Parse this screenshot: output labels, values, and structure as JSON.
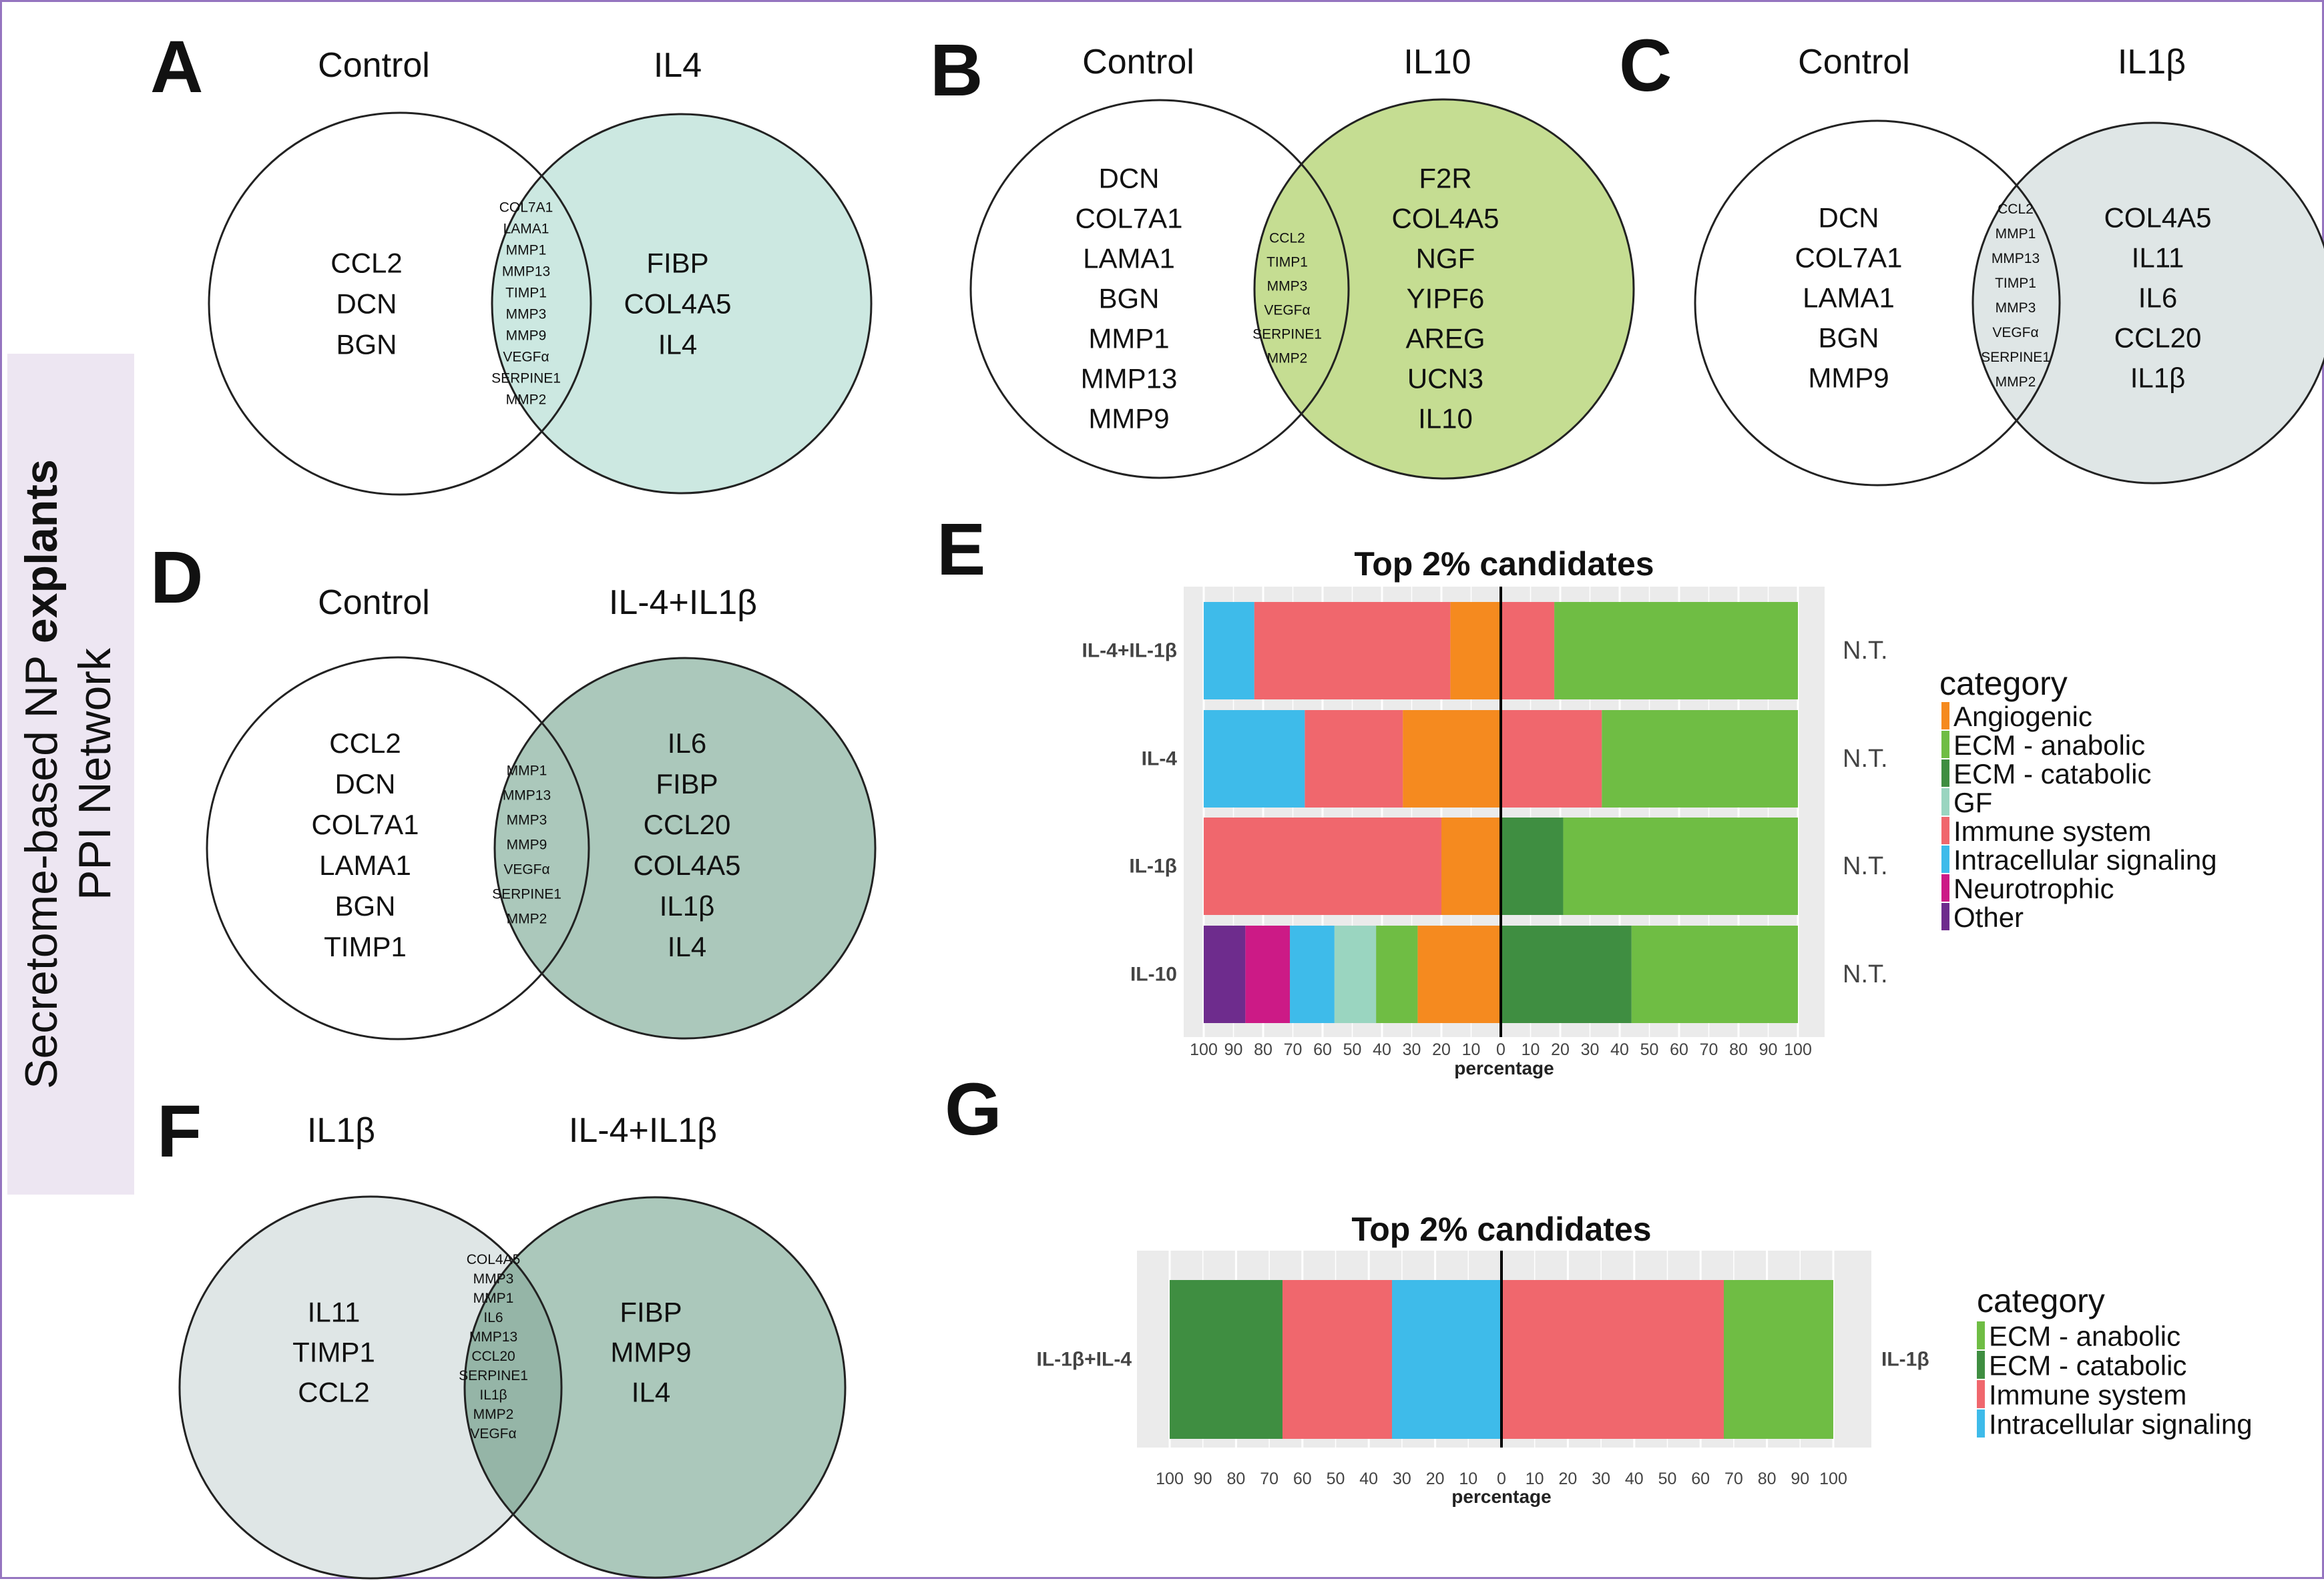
{
  "panels": {
    "A": {
      "letter": "A",
      "left_title": "Control",
      "right_title": "IL4",
      "left_items": [
        "CCL2",
        "DCN",
        "BGN"
      ],
      "overlap_items": [
        "COL7A1",
        "LAMA1",
        "MMP1",
        "MMP13",
        "TIMP1",
        "MMP3",
        "MMP9",
        "VEGFα",
        "SERPINE1",
        "MMP2"
      ],
      "right_items": [
        "FIBP",
        "COL4A5",
        "IL4"
      ]
    },
    "B": {
      "letter": "B",
      "left_title": "Control",
      "right_title": "IL10",
      "left_items": [
        "DCN",
        "COL7A1",
        "LAMA1",
        "BGN",
        "MMP1",
        "MMP13",
        "MMP9"
      ],
      "overlap_items": [
        "CCL2",
        "TIMP1",
        "MMP3",
        "VEGFα",
        "SERPINE1",
        "MMP2"
      ],
      "right_items": [
        "F2R",
        "COL4A5",
        "NGF",
        "YIPF6",
        "AREG",
        "UCN3",
        "IL10"
      ]
    },
    "C": {
      "letter": "C",
      "left_title": "Control",
      "right_title": "IL1β",
      "left_items": [
        "DCN",
        "COL7A1",
        "LAMA1",
        "BGN",
        "MMP9"
      ],
      "overlap_items": [
        "CCL2",
        "MMP1",
        "MMP13",
        "TIMP1",
        "MMP3",
        "VEGFα",
        "SERPINE1",
        "MMP2"
      ],
      "right_items": [
        "COL4A5",
        "IL11",
        "IL6",
        "CCL20",
        "IL1β"
      ]
    },
    "D": {
      "letter": "D",
      "left_title": "Control",
      "right_title": "IL-4+IL1β",
      "left_items": [
        "CCL2",
        "DCN",
        "COL7A1",
        "LAMA1",
        "BGN",
        "TIMP1"
      ],
      "overlap_items": [
        "MMP1",
        "MMP13",
        "MMP3",
        "MMP9",
        "VEGFα",
        "SERPINE1",
        "MMP2"
      ],
      "right_items": [
        "IL6",
        "FIBP",
        "CCL20",
        "COL4A5",
        "IL1β",
        "IL4"
      ]
    },
    "F": {
      "letter": "F",
      "left_title": "IL1β",
      "right_title": "IL-4+IL1β",
      "left_items": [
        "IL11",
        "TIMP1",
        "CCL2"
      ],
      "overlap_items": [
        "COL4A5",
        "MMP3",
        "MMP1",
        "IL6",
        "MMP13",
        "CCL20",
        "SERPINE1",
        "IL1β",
        "MMP2",
        "VEGFα"
      ],
      "right_items": [
        "FIBP",
        "MMP9",
        "IL4"
      ]
    },
    "E": {
      "letter": "E"
    },
    "G": {
      "letter": "G"
    }
  },
  "side_label": {
    "line1_regular": "Secretome-based NP ",
    "line1_bold": "explants",
    "line2": "PPI Network"
  },
  "venn_colors": {
    "A": "#cce8e1",
    "B": "#c5dd92",
    "C": "#dfe6e6",
    "D": "#abc8bb",
    "F_left": "#dfe6e6",
    "F_right": "#abc8bb"
  },
  "category_colors": {
    "Angiogenic": "#f58a1f",
    "ECM - anabolic": "#6fbd44",
    "ECM - catabolic": "#3f8e41",
    "GF": "#9ad5c0",
    "Immune system": "#f0676d",
    "Intracellular signaling": "#3ebbea",
    "Neurotrophic": "#cc1a86",
    "Other": "#6e2c8d"
  },
  "chart_data": [
    {
      "type": "bar",
      "orientation": "horizontal-diverging",
      "title": "Top 2% candidates",
      "xlabel": "percentage",
      "xlim": [
        -100,
        100
      ],
      "x_ticks": [
        "100",
        "90",
        "80",
        "70",
        "60",
        "50",
        "40",
        "30",
        "20",
        "10",
        "0",
        "10",
        "20",
        "30",
        "40",
        "50",
        "60",
        "70",
        "80",
        "90",
        "100"
      ],
      "legend_title": "category",
      "legend": [
        "Angiogenic",
        "ECM - anabolic",
        "ECM - catabolic",
        "GF",
        "Immune system",
        "Intracellular signaling",
        "Neurotrophic",
        "Other"
      ],
      "rows": [
        {
          "label": "IL-4+IL-1β",
          "right_label": "N.T.",
          "left": [
            {
              "category": "Angiogenic",
              "value": 17
            },
            {
              "category": "Immune system",
              "value": 66
            },
            {
              "category": "Intracellular signaling",
              "value": 17
            }
          ],
          "right": [
            {
              "category": "Immune system",
              "value": 18
            },
            {
              "category": "ECM - anabolic",
              "value": 82
            }
          ]
        },
        {
          "label": "IL-4",
          "right_label": "N.T.",
          "left": [
            {
              "category": "Angiogenic",
              "value": 33
            },
            {
              "category": "Immune system",
              "value": 33
            },
            {
              "category": "Intracellular signaling",
              "value": 34
            }
          ],
          "right": [
            {
              "category": "Immune system",
              "value": 34
            },
            {
              "category": "ECM - anabolic",
              "value": 66
            }
          ]
        },
        {
          "label": "IL-1β",
          "right_label": "N.T.",
          "left": [
            {
              "category": "Angiogenic",
              "value": 20
            },
            {
              "category": "Immune system",
              "value": 80
            }
          ],
          "right": [
            {
              "category": "ECM - catabolic",
              "value": 21
            },
            {
              "category": "ECM - anabolic",
              "value": 79
            }
          ]
        },
        {
          "label": "IL-10",
          "right_label": "N.T.",
          "left": [
            {
              "category": "Angiogenic",
              "value": 28
            },
            {
              "category": "ECM - anabolic",
              "value": 14
            },
            {
              "category": "GF",
              "value": 14
            },
            {
              "category": "Intracellular signaling",
              "value": 15
            },
            {
              "category": "Neurotrophic",
              "value": 15
            },
            {
              "category": "Other",
              "value": 14
            }
          ],
          "right": [
            {
              "category": "ECM - catabolic",
              "value": 44
            },
            {
              "category": "ECM - anabolic",
              "value": 56
            }
          ]
        }
      ]
    },
    {
      "type": "bar",
      "orientation": "horizontal-diverging",
      "title": "Top 2% candidates",
      "xlabel": "percentage",
      "xlim": [
        -100,
        100
      ],
      "x_ticks": [
        "100",
        "90",
        "80",
        "70",
        "60",
        "50",
        "40",
        "30",
        "20",
        "10",
        "0",
        "10",
        "20",
        "30",
        "40",
        "50",
        "60",
        "70",
        "80",
        "90",
        "100"
      ],
      "legend_title": "category",
      "legend": [
        "ECM - anabolic",
        "ECM - catabolic",
        "Immune system",
        "Intracellular signaling"
      ],
      "rows": [
        {
          "label": "IL-1β+IL-4",
          "right_label": "IL-1β",
          "left": [
            {
              "category": "Intracellular signaling",
              "value": 33
            },
            {
              "category": "Immune system",
              "value": 33
            },
            {
              "category": "ECM - catabolic",
              "value": 34
            }
          ],
          "right": [
            {
              "category": "Immune system",
              "value": 67
            },
            {
              "category": "ECM - anabolic",
              "value": 33
            }
          ]
        }
      ]
    }
  ]
}
